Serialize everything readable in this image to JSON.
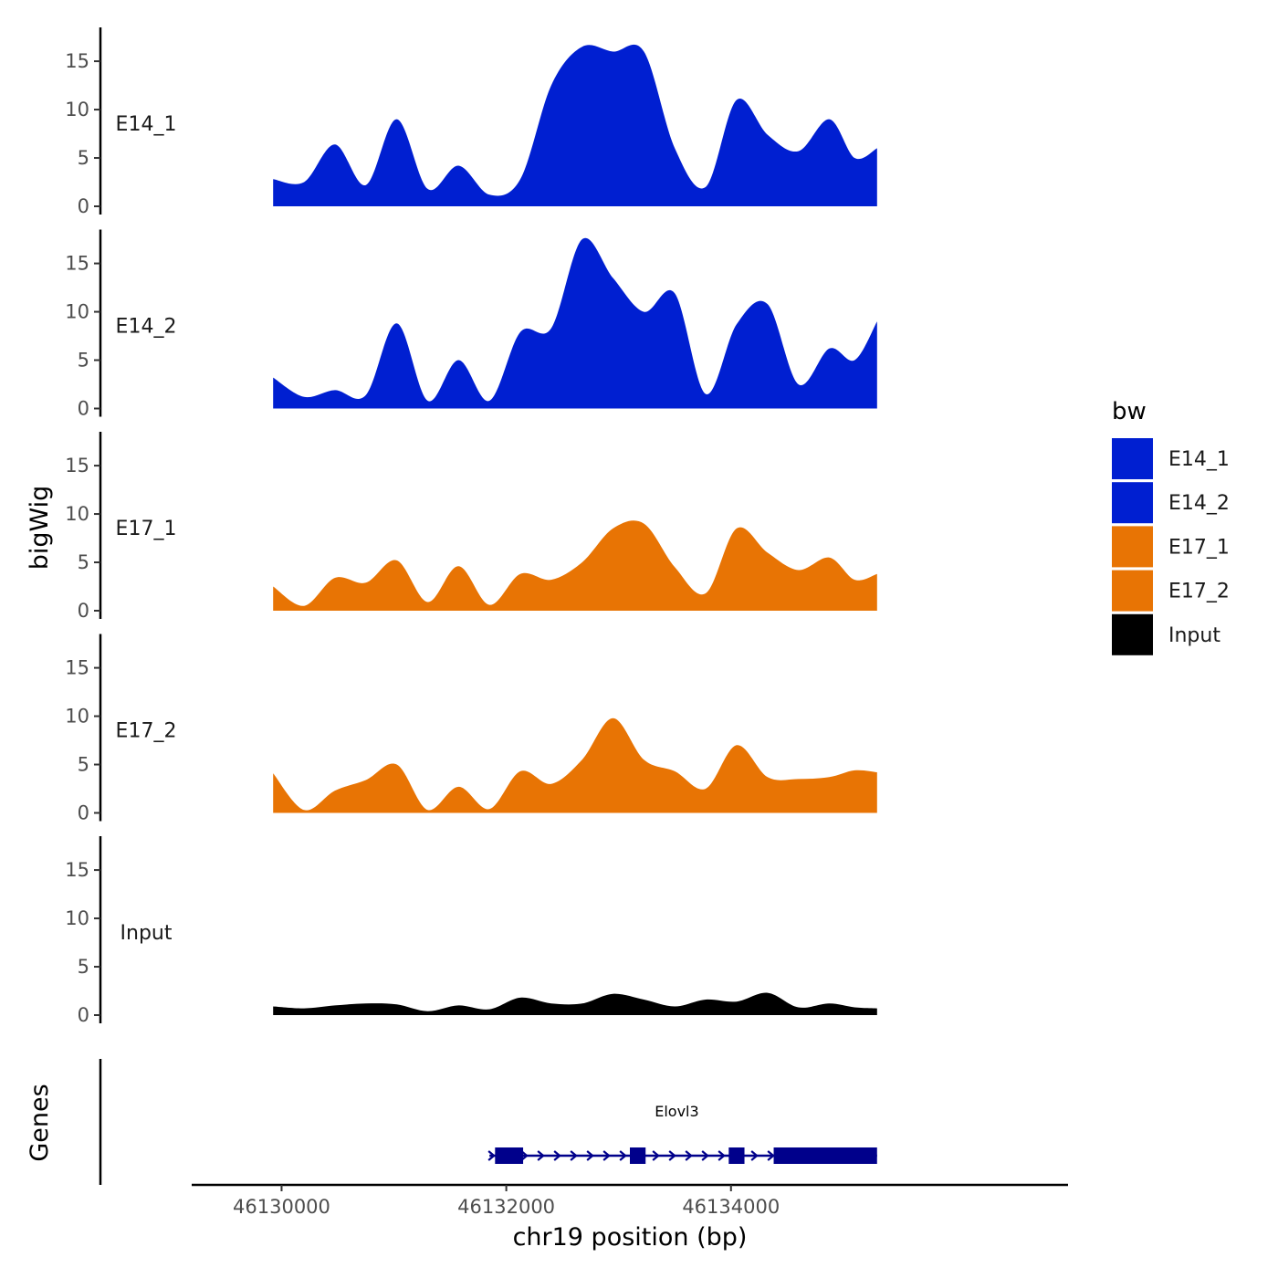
{
  "chart_data": {
    "type": "area",
    "title": "",
    "xlabel": "chr19 position (bp)",
    "ylabel": "bigWig",
    "genes_label": "Genes",
    "xlim": [
      46129200,
      46137000
    ],
    "ylim": [
      0,
      18.5
    ],
    "x_ticks": [
      46130000,
      46132000,
      46134000
    ],
    "x_tick_labels": [
      "46130000",
      "46132000",
      "46134000"
    ],
    "y_ticks": [
      0,
      5,
      10,
      15
    ],
    "y_tick_labels": [
      "0",
      "5",
      "10",
      "15"
    ],
    "x": [
      46129925,
      46130200,
      46130475,
      46130750,
      46131025,
      46131300,
      46131575,
      46131850,
      46132125,
      46132400,
      46132675,
      46132950,
      46133225,
      46133500,
      46133775,
      46134050,
      46134325,
      46134600,
      46134875,
      46135100,
      46135300
    ],
    "series": [
      {
        "name": "E14_1",
        "values": [
          2.8,
          2.5,
          6.4,
          2.2,
          9.0,
          1.8,
          4.2,
          1.2,
          2.8,
          12.5,
          16.5,
          16.0,
          16.0,
          6.0,
          2.0,
          11.0,
          7.4,
          5.7,
          9.0,
          5.0,
          6.0
        ]
      },
      {
        "name": "E14_2",
        "values": [
          3.2,
          1.2,
          1.9,
          1.4,
          8.8,
          0.8,
          5.0,
          0.8,
          7.9,
          8.3,
          17.5,
          13.5,
          10.0,
          11.9,
          1.5,
          8.7,
          10.8,
          2.5,
          6.2,
          5.0,
          9.0
        ]
      },
      {
        "name": "E17_1",
        "values": [
          2.5,
          0.5,
          3.4,
          2.9,
          5.2,
          0.9,
          4.6,
          0.6,
          3.8,
          3.2,
          5.0,
          8.5,
          9.0,
          4.5,
          1.8,
          8.5,
          6.0,
          4.2,
          5.5,
          3.2,
          3.8
        ]
      },
      {
        "name": "E17_2",
        "values": [
          4.1,
          0.3,
          2.3,
          3.4,
          5.0,
          0.3,
          2.7,
          0.4,
          4.3,
          3.0,
          5.5,
          9.8,
          5.5,
          4.3,
          2.5,
          7.0,
          3.7,
          3.5,
          3.7,
          4.4,
          4.2
        ]
      },
      {
        "name": "Input",
        "values": [
          0.9,
          0.7,
          1.0,
          1.2,
          1.1,
          0.4,
          1.0,
          0.6,
          1.8,
          1.2,
          1.2,
          2.2,
          1.6,
          0.9,
          1.6,
          1.4,
          2.3,
          0.8,
          1.2,
          0.8,
          0.7
        ]
      }
    ],
    "legend": {
      "title": "bw",
      "position": "right",
      "entries": [
        "E14_1",
        "E14_2",
        "E17_1",
        "E17_2",
        "Input"
      ]
    },
    "colors": {
      "E14_1": "#001fd1",
      "E14_2": "#001fd1",
      "E17_1": "#e87404",
      "E17_2": "#e87404",
      "Input": "#000000",
      "gene": "#00008b"
    },
    "gene": {
      "name": "Elovl3",
      "start": 46131850,
      "end": 46135300,
      "exons": [
        [
          46131900,
          46132150
        ],
        [
          46133100,
          46133240
        ],
        [
          46133980,
          46134120
        ],
        [
          46134380,
          46135300
        ]
      ],
      "strand": "+"
    }
  }
}
